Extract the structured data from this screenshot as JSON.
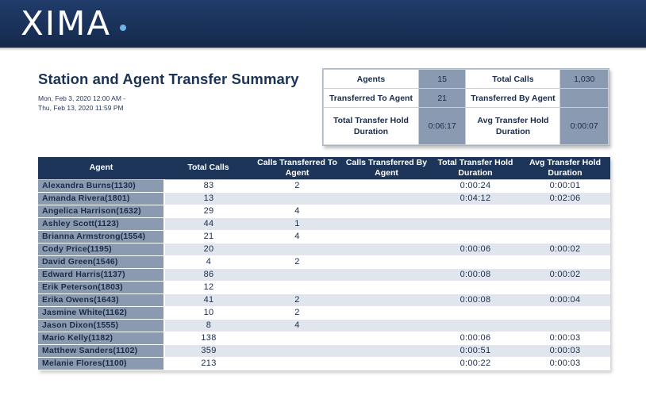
{
  "brand": {
    "logo_text": "XIMA"
  },
  "report": {
    "title": "Station and Agent Transfer Summary",
    "date_from": "Mon, Feb 3, 2020 12:00 AM -",
    "date_to": "Thu, Feb 13, 2020 11:59 PM"
  },
  "summary": {
    "agents_label": "Agents",
    "agents_value": "15",
    "total_calls_label": "Total Calls",
    "total_calls_value": "1,030",
    "transferred_to_label": "Transferred To Agent",
    "transferred_to_value": "21",
    "transferred_by_label": "Transferred By Agent",
    "transferred_by_value": "",
    "total_hold_label": "Total Transfer Hold Duration",
    "total_hold_value": "0:06:17",
    "avg_hold_label": "Avg Transfer Hold Duration",
    "avg_hold_value": "0:00:07"
  },
  "table": {
    "headers": [
      "Agent",
      "Total Calls",
      "Calls Transferred To Agent",
      "Calls Transferred By Agent",
      "Total Transfer Hold Duration",
      "Avg Transfer Hold Duration"
    ],
    "rows": [
      [
        "Alexandra Burns(1130)",
        "83",
        "2",
        "",
        "0:00:24",
        "0:00:01"
      ],
      [
        "Amanda Rivera(1801)",
        "13",
        "",
        "",
        "0:04:12",
        "0:02:06"
      ],
      [
        "Angelica Harrison(1632)",
        "29",
        "4",
        "",
        "",
        ""
      ],
      [
        "Ashley Scott(1123)",
        "44",
        "1",
        "",
        "",
        ""
      ],
      [
        "Brianna Armstrong(1554)",
        "21",
        "4",
        "",
        "",
        ""
      ],
      [
        "Cody Price(1195)",
        "20",
        "",
        "",
        "0:00:06",
        "0:00:02"
      ],
      [
        "David Green(1546)",
        "4",
        "2",
        "",
        "",
        ""
      ],
      [
        "Edward Harris(1137)",
        "86",
        "",
        "",
        "0:00:08",
        "0:00:02"
      ],
      [
        "Erik Peterson(1803)",
        "12",
        "",
        "",
        "",
        ""
      ],
      [
        "Erika Owens(1643)",
        "41",
        "2",
        "",
        "0:00:08",
        "0:00:04"
      ],
      [
        "Jasmine White(1162)",
        "10",
        "2",
        "",
        "",
        ""
      ],
      [
        "Jason Dixon(1555)",
        "8",
        "4",
        "",
        "",
        ""
      ],
      [
        "Mario Kelly(1182)",
        "138",
        "",
        "",
        "0:00:06",
        "0:00:03"
      ],
      [
        "Matthew Sanders(1102)",
        "359",
        "",
        "",
        "0:00:51",
        "0:00:03"
      ],
      [
        "Melanie Flores(1100)",
        "213",
        "",
        "",
        "0:00:22",
        "0:00:03"
      ]
    ]
  }
}
